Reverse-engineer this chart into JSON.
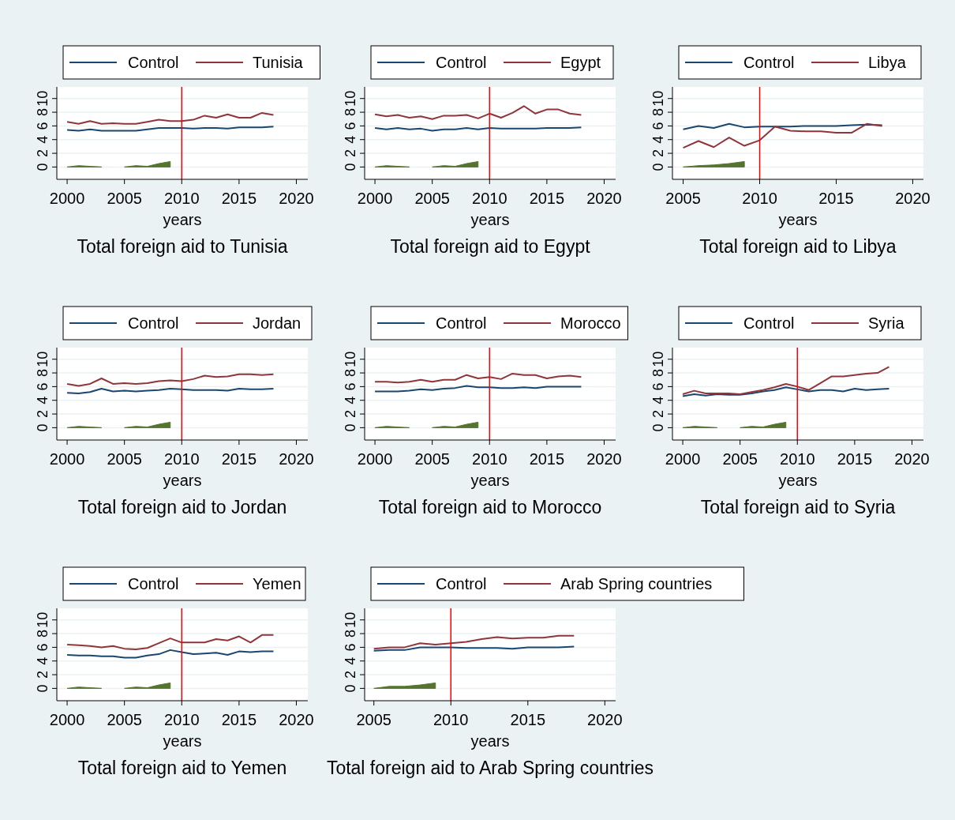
{
  "chart_data": [
    {
      "type": "line",
      "title": "Total foreign aid to Tunisia",
      "xlabel": "years",
      "xlim": [
        1999.1,
        2021
      ],
      "xticks": [
        2000,
        2005,
        2010,
        2015,
        2020
      ],
      "ylim": [
        -1.8,
        11.7
      ],
      "yticks": [
        0,
        2,
        4,
        6,
        8,
        10
      ],
      "grid": "y",
      "legend": "top",
      "ref_lines": [
        {
          "axis": "x",
          "value": 2010,
          "color": "#ff0000"
        }
      ],
      "x": [
        2000,
        2001,
        2002,
        2003,
        2004,
        2005,
        2006,
        2007,
        2008,
        2009,
        2010,
        2011,
        2012,
        2013,
        2014,
        2015,
        2016,
        2017,
        2018
      ],
      "series": [
        {
          "name": "Control",
          "color": "#1a476f",
          "values": [
            5.4,
            5.3,
            5.5,
            5.3,
            5.3,
            5.3,
            5.3,
            5.5,
            5.7,
            5.7,
            5.7,
            5.6,
            5.7,
            5.7,
            5.6,
            5.8,
            5.8,
            5.8,
            5.9
          ]
        },
        {
          "name": "Tunisia",
          "color": "#90353b",
          "values": [
            6.6,
            6.3,
            6.7,
            6.3,
            6.4,
            6.3,
            6.3,
            6.6,
            6.9,
            6.7,
            6.7,
            6.9,
            7.5,
            7.2,
            7.7,
            7.2,
            7.2,
            7.9,
            7.6
          ]
        },
        {
          "type": "area",
          "color": "#55752f",
          "x": [
            2000,
            2001,
            2002,
            2003
          ],
          "values": [
            0,
            0.2,
            0.1,
            0
          ]
        },
        {
          "type": "area",
          "color": "#55752f",
          "x": [
            2005,
            2006,
            2007,
            2008,
            2009
          ],
          "values": [
            0,
            0.2,
            0.1,
            0.5,
            0.8
          ]
        }
      ]
    },
    {
      "type": "line",
      "title": "Total foreign aid to Egypt",
      "xlabel": "years",
      "xlim": [
        1999.1,
        2021
      ],
      "xticks": [
        2000,
        2005,
        2010,
        2015,
        2020
      ],
      "ylim": [
        -1.8,
        11.7
      ],
      "yticks": [
        0,
        2,
        4,
        6,
        8,
        10
      ],
      "grid": "y",
      "legend": "top",
      "ref_lines": [
        {
          "axis": "x",
          "value": 2010,
          "color": "#ff0000"
        }
      ],
      "x": [
        2000,
        2001,
        2002,
        2003,
        2004,
        2005,
        2006,
        2007,
        2008,
        2009,
        2010,
        2011,
        2012,
        2013,
        2014,
        2015,
        2016,
        2017,
        2018
      ],
      "series": [
        {
          "name": "Control",
          "color": "#1a476f",
          "values": [
            5.7,
            5.5,
            5.7,
            5.5,
            5.6,
            5.3,
            5.5,
            5.5,
            5.7,
            5.5,
            5.7,
            5.6,
            5.6,
            5.6,
            5.6,
            5.7,
            5.7,
            5.7,
            5.8
          ]
        },
        {
          "name": "Egypt",
          "color": "#90353b",
          "values": [
            7.7,
            7.4,
            7.6,
            7.2,
            7.4,
            7.0,
            7.5,
            7.5,
            7.6,
            7.1,
            7.8,
            7.2,
            7.9,
            8.9,
            7.8,
            8.4,
            8.4,
            7.8,
            7.6
          ]
        },
        {
          "type": "area",
          "color": "#55752f",
          "x": [
            2000,
            2001,
            2002,
            2003
          ],
          "values": [
            0,
            0.2,
            0.1,
            0
          ]
        },
        {
          "type": "area",
          "color": "#55752f",
          "x": [
            2005,
            2006,
            2007,
            2008,
            2009
          ],
          "values": [
            0,
            0.2,
            0.1,
            0.5,
            0.8
          ]
        }
      ]
    },
    {
      "type": "line",
      "title": "Total foreign aid to Libya",
      "xlabel": "years",
      "xlim": [
        2004.3,
        2020.7
      ],
      "xticks": [
        2005,
        2010,
        2015,
        2020
      ],
      "ylim": [
        -1.8,
        11.7
      ],
      "yticks": [
        0,
        2,
        4,
        6,
        8,
        10
      ],
      "grid": "y",
      "legend": "top",
      "ref_lines": [
        {
          "axis": "x",
          "value": 2010,
          "color": "#ff0000"
        }
      ],
      "x": [
        2005,
        2006,
        2007,
        2008,
        2009,
        2010,
        2011,
        2012,
        2013,
        2014,
        2015,
        2016,
        2017,
        2018
      ],
      "series": [
        {
          "name": "Control",
          "color": "#1a476f",
          "values": [
            5.5,
            6.0,
            5.7,
            6.3,
            5.8,
            5.9,
            5.9,
            5.9,
            6.0,
            6.0,
            6.0,
            6.1,
            6.2,
            6.1
          ]
        },
        {
          "name": "Libya",
          "color": "#90353b",
          "values": [
            2.8,
            3.8,
            2.9,
            4.3,
            3.1,
            3.9,
            5.9,
            5.3,
            5.2,
            5.2,
            5.0,
            5.0,
            6.3,
            6.0
          ]
        },
        {
          "type": "area",
          "color": "#55752f",
          "x": [
            2005,
            2006,
            2007,
            2008,
            2009
          ],
          "values": [
            0,
            0.2,
            0.3,
            0.5,
            0.8
          ]
        }
      ]
    },
    {
      "type": "line",
      "title": "Total foreign aid to Jordan",
      "xlabel": "years",
      "xlim": [
        1999.1,
        2021
      ],
      "xticks": [
        2000,
        2005,
        2010,
        2015,
        2020
      ],
      "ylim": [
        -1.8,
        11.7
      ],
      "yticks": [
        0,
        2,
        4,
        6,
        8,
        10
      ],
      "grid": "y",
      "legend": "top",
      "ref_lines": [
        {
          "axis": "x",
          "value": 2010,
          "color": "#ff0000"
        }
      ],
      "x": [
        2000,
        2001,
        2002,
        2003,
        2004,
        2005,
        2006,
        2007,
        2008,
        2009,
        2010,
        2011,
        2012,
        2013,
        2014,
        2015,
        2016,
        2017,
        2018
      ],
      "series": [
        {
          "name": "Control",
          "color": "#1a476f",
          "values": [
            5.1,
            5.0,
            5.2,
            5.7,
            5.3,
            5.4,
            5.3,
            5.4,
            5.5,
            5.7,
            5.6,
            5.5,
            5.5,
            5.5,
            5.4,
            5.7,
            5.6,
            5.6,
            5.7
          ]
        },
        {
          "name": "Jordan",
          "color": "#90353b",
          "values": [
            6.4,
            6.1,
            6.4,
            7.2,
            6.4,
            6.5,
            6.4,
            6.5,
            6.8,
            6.9,
            6.8,
            7.1,
            7.6,
            7.4,
            7.5,
            7.8,
            7.8,
            7.7,
            7.8
          ]
        },
        {
          "type": "area",
          "color": "#55752f",
          "x": [
            2000,
            2001,
            2002,
            2003
          ],
          "values": [
            0,
            0.2,
            0.1,
            0
          ]
        },
        {
          "type": "area",
          "color": "#55752f",
          "x": [
            2005,
            2006,
            2007,
            2008,
            2009
          ],
          "values": [
            0,
            0.2,
            0.1,
            0.5,
            0.8
          ]
        }
      ]
    },
    {
      "type": "line",
      "title": "Total foreign aid to Morocco",
      "xlabel": "years",
      "xlim": [
        1999.1,
        2021
      ],
      "xticks": [
        2000,
        2005,
        2010,
        2015,
        2020
      ],
      "ylim": [
        -1.8,
        11.7
      ],
      "yticks": [
        0,
        2,
        4,
        6,
        8,
        10
      ],
      "grid": "y",
      "legend": "top",
      "ref_lines": [
        {
          "axis": "x",
          "value": 2010,
          "color": "#ff0000"
        }
      ],
      "x": [
        2000,
        2001,
        2002,
        2003,
        2004,
        2005,
        2006,
        2007,
        2008,
        2009,
        2010,
        2011,
        2012,
        2013,
        2014,
        2015,
        2016,
        2017,
        2018
      ],
      "series": [
        {
          "name": "Control",
          "color": "#1a476f",
          "values": [
            5.3,
            5.3,
            5.3,
            5.4,
            5.6,
            5.5,
            5.7,
            5.8,
            6.1,
            5.9,
            5.9,
            5.8,
            5.8,
            5.9,
            5.8,
            6.0,
            6.0,
            6.0,
            6.0
          ]
        },
        {
          "name": "Morocco",
          "color": "#90353b",
          "values": [
            6.7,
            6.7,
            6.6,
            6.7,
            7.0,
            6.7,
            7.0,
            7.0,
            7.7,
            7.2,
            7.4,
            7.1,
            7.9,
            7.7,
            7.7,
            7.2,
            7.5,
            7.6,
            7.4
          ]
        },
        {
          "type": "area",
          "color": "#55752f",
          "x": [
            2000,
            2001,
            2002,
            2003
          ],
          "values": [
            0,
            0.2,
            0.1,
            0
          ]
        },
        {
          "type": "area",
          "color": "#55752f",
          "x": [
            2005,
            2006,
            2007,
            2008,
            2009
          ],
          "values": [
            0,
            0.2,
            0.1,
            0.5,
            0.8
          ]
        }
      ]
    },
    {
      "type": "line",
      "title": "Total foreign aid to Syria",
      "xlabel": "years",
      "xlim": [
        1999.1,
        2021
      ],
      "xticks": [
        2000,
        2005,
        2010,
        2015,
        2020
      ],
      "ylim": [
        -1.8,
        11.7
      ],
      "yticks": [
        0,
        2,
        4,
        6,
        8,
        10
      ],
      "grid": "y",
      "legend": "top",
      "ref_lines": [
        {
          "axis": "x",
          "value": 2010,
          "color": "#ff0000"
        }
      ],
      "x": [
        2000,
        2001,
        2002,
        2003,
        2004,
        2005,
        2006,
        2007,
        2008,
        2009,
        2010,
        2011,
        2012,
        2013,
        2014,
        2015,
        2016,
        2017,
        2018
      ],
      "series": [
        {
          "name": "Control",
          "color": "#1a476f",
          "values": [
            4.6,
            4.9,
            4.7,
            4.9,
            4.8,
            4.8,
            5.0,
            5.3,
            5.5,
            5.9,
            5.6,
            5.3,
            5.5,
            5.5,
            5.3,
            5.7,
            5.5,
            5.6,
            5.7
          ]
        },
        {
          "name": "Syria",
          "color": "#90353b",
          "values": [
            4.9,
            5.4,
            5.0,
            5.0,
            5.0,
            4.9,
            5.2,
            5.5,
            5.9,
            6.4,
            6.0,
            5.5,
            6.5,
            7.5,
            7.5,
            7.7,
            7.9,
            8.0,
            8.9
          ]
        },
        {
          "type": "area",
          "color": "#55752f",
          "x": [
            2000,
            2001,
            2002,
            2003
          ],
          "values": [
            0,
            0.2,
            0.1,
            0
          ]
        },
        {
          "type": "area",
          "color": "#55752f",
          "x": [
            2005,
            2006,
            2007,
            2008,
            2009
          ],
          "values": [
            0,
            0.2,
            0.1,
            0.5,
            0.8
          ]
        }
      ]
    },
    {
      "type": "line",
      "title": "Total foreign aid to Yemen",
      "xlabel": "years",
      "xlim": [
        1999.1,
        2021
      ],
      "xticks": [
        2000,
        2005,
        2010,
        2015,
        2020
      ],
      "ylim": [
        -1.8,
        11.7
      ],
      "yticks": [
        0,
        2,
        4,
        6,
        8,
        10
      ],
      "grid": "y",
      "legend": "top",
      "ref_lines": [
        {
          "axis": "x",
          "value": 2010,
          "color": "#ff0000"
        }
      ],
      "x": [
        2000,
        2001,
        2002,
        2003,
        2004,
        2005,
        2006,
        2007,
        2008,
        2009,
        2010,
        2011,
        2012,
        2013,
        2014,
        2015,
        2016,
        2017,
        2018
      ],
      "series": [
        {
          "name": "Control",
          "color": "#1a476f",
          "values": [
            4.9,
            4.8,
            4.8,
            4.7,
            4.7,
            4.5,
            4.5,
            4.8,
            5.0,
            5.6,
            5.3,
            5.0,
            5.1,
            5.2,
            4.9,
            5.4,
            5.3,
            5.4,
            5.4
          ]
        },
        {
          "name": "Yemen",
          "color": "#90353b",
          "values": [
            6.4,
            6.3,
            6.2,
            6.0,
            6.2,
            5.8,
            5.7,
            5.9,
            6.6,
            7.3,
            6.7,
            6.7,
            6.7,
            7.2,
            7.0,
            7.6,
            6.7,
            7.8,
            7.8
          ]
        },
        {
          "type": "area",
          "color": "#55752f",
          "x": [
            2000,
            2001,
            2002,
            2003
          ],
          "values": [
            0,
            0.2,
            0.1,
            0
          ]
        },
        {
          "type": "area",
          "color": "#55752f",
          "x": [
            2005,
            2006,
            2007,
            2008,
            2009
          ],
          "values": [
            0,
            0.2,
            0.1,
            0.5,
            0.8
          ]
        }
      ]
    },
    {
      "type": "line",
      "title": "Total foreign aid to Arab Spring countries",
      "xlabel": "years",
      "xlim": [
        2004.4,
        2020.7
      ],
      "xticks": [
        2005,
        2010,
        2015,
        2020
      ],
      "ylim": [
        -1.8,
        11.7
      ],
      "yticks": [
        0,
        2,
        4,
        6,
        8,
        10
      ],
      "grid": "y",
      "legend": "top",
      "ref_lines": [
        {
          "axis": "x",
          "value": 2010,
          "color": "#ff0000"
        }
      ],
      "x": [
        2005,
        2006,
        2007,
        2008,
        2009,
        2010,
        2011,
        2012,
        2013,
        2014,
        2015,
        2016,
        2017,
        2018
      ],
      "series": [
        {
          "name": "Control",
          "color": "#1a476f",
          "values": [
            5.5,
            5.6,
            5.6,
            6.0,
            6.0,
            6.0,
            5.9,
            5.9,
            5.9,
            5.8,
            6.0,
            6.0,
            6.0,
            6.1
          ]
        },
        {
          "name": "Arab Spring countries",
          "color": "#90353b",
          "values": [
            5.8,
            6.0,
            6.0,
            6.6,
            6.4,
            6.6,
            6.8,
            7.2,
            7.5,
            7.3,
            7.4,
            7.4,
            7.7,
            7.7
          ]
        },
        {
          "type": "area",
          "color": "#55752f",
          "x": [
            2005,
            2006,
            2007,
            2008,
            2009
          ],
          "values": [
            0,
            0.3,
            0.3,
            0.5,
            0.8
          ]
        }
      ]
    }
  ]
}
